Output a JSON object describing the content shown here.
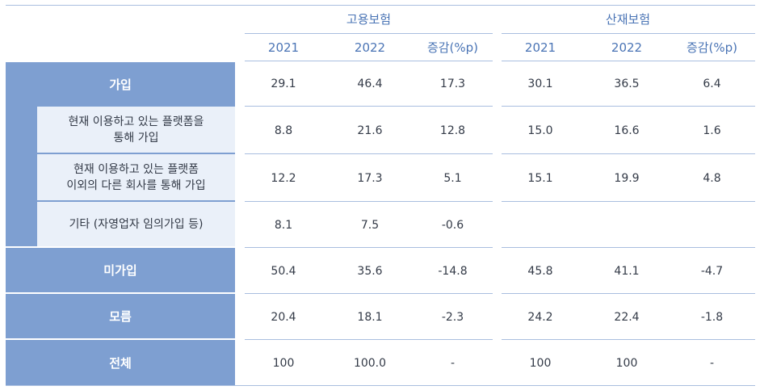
{
  "table": {
    "groups": [
      "고용보험",
      "산재보험"
    ],
    "columns": [
      "2021",
      "2022",
      "증감(%p)"
    ],
    "rows": [
      {
        "label": "가입",
        "level": "main",
        "values": [
          "29.1",
          "46.4",
          "17.3",
          "30.1",
          "36.5",
          "6.4"
        ]
      },
      {
        "label_lines": [
          "현재 이용하고 있는 플랫폼을",
          "통해 가입"
        ],
        "level": "sub",
        "values": [
          "8.8",
          "21.6",
          "12.8",
          "15.0",
          "16.6",
          "1.6"
        ]
      },
      {
        "label_lines": [
          "현재 이용하고 있는 플랫폼",
          "이외의 다른 회사를 통해 가입"
        ],
        "level": "sub",
        "values": [
          "12.2",
          "17.3",
          "5.1",
          "15.1",
          "19.9",
          "4.8"
        ]
      },
      {
        "label": "기타 (자영업자 임의가입 등)",
        "level": "sub",
        "values": [
          "8.1",
          "7.5",
          "-0.6",
          "",
          "",
          ""
        ]
      },
      {
        "label": "미가입",
        "level": "main",
        "values": [
          "50.4",
          "35.6",
          "-14.8",
          "45.8",
          "41.1",
          "-4.7"
        ]
      },
      {
        "label": "모름",
        "level": "main",
        "values": [
          "20.4",
          "18.1",
          "-2.3",
          "24.2",
          "22.4",
          "-1.8"
        ]
      },
      {
        "label": "전체",
        "level": "main",
        "values": [
          "100",
          "100.0",
          "-",
          "100",
          "100",
          "-"
        ]
      }
    ]
  },
  "colors": {
    "header_text": "#4a74b5",
    "stub_main_bg": "#7e9fd1",
    "stub_sub_bg": "#eaf0f9",
    "rule": "#a9bedf"
  }
}
